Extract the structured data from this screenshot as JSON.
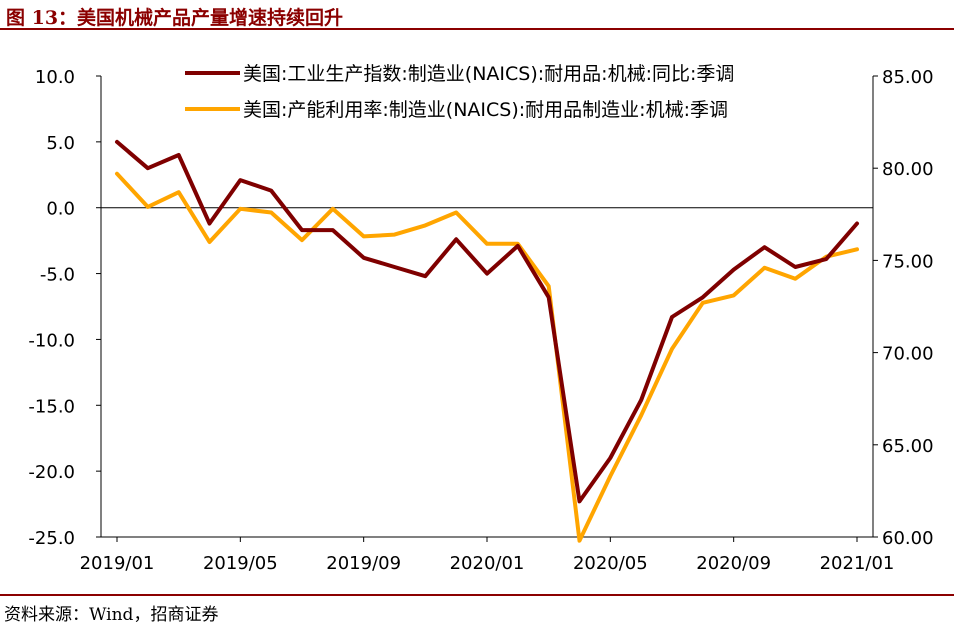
{
  "header": {
    "title": "图 13：美国机械产品产量增速持续回升"
  },
  "footer": {
    "source": "资料来源：Wind，招商证券"
  },
  "colors": {
    "accent": "#8B0000",
    "series1": "#7F0000",
    "series2": "#FFA500"
  },
  "chart_data": {
    "type": "line",
    "x": [
      "2019/01",
      "2019/02",
      "2019/03",
      "2019/04",
      "2019/05",
      "2019/06",
      "2019/07",
      "2019/08",
      "2019/09",
      "2019/10",
      "2019/11",
      "2019/12",
      "2020/01",
      "2020/02",
      "2020/03",
      "2020/04",
      "2020/05",
      "2020/06",
      "2020/07",
      "2020/08",
      "2020/09",
      "2020/10",
      "2020/11",
      "2020/12",
      "2021/01"
    ],
    "xticks": [
      "2019/01",
      "2019/05",
      "2019/09",
      "2020/01",
      "2020/05",
      "2020/09",
      "2021/01"
    ],
    "series": [
      {
        "name": "美国:工业生产指数:制造业(NAICS):耐用品:机械:同比:季调",
        "axis": "left",
        "values": [
          5.0,
          3.0,
          4.0,
          -1.2,
          2.1,
          1.3,
          -1.7,
          -1.7,
          -3.8,
          -4.5,
          -5.2,
          -2.4,
          -5.0,
          -2.9,
          -6.8,
          -22.3,
          -19.0,
          -14.6,
          -8.3,
          -6.8,
          -4.7,
          -3.0,
          -4.5,
          -3.9,
          -1.2
        ]
      },
      {
        "name": "美国:产能利用率:制造业(NAICS):耐用品制造业:机械:季调",
        "axis": "right",
        "values": [
          79.7,
          77.9,
          78.7,
          76.0,
          77.8,
          77.6,
          76.1,
          77.8,
          76.3,
          76.4,
          76.9,
          77.6,
          75.9,
          75.9,
          73.6,
          59.8,
          63.3,
          66.6,
          70.2,
          72.7,
          73.1,
          74.6,
          74.0,
          75.2,
          75.6
        ]
      }
    ],
    "y_left": {
      "ticks": [
        "10.0",
        "5.0",
        "0.0",
        "-5.0",
        "-10.0",
        "-15.0",
        "-20.0",
        "-25.0"
      ],
      "ylim": [
        -25,
        10
      ]
    },
    "y_right": {
      "ticks": [
        "85.00",
        "80.00",
        "75.00",
        "70.00",
        "65.00",
        "60.00"
      ],
      "ylim": [
        60,
        85
      ]
    },
    "grid": false,
    "legend_position": "top-center"
  }
}
